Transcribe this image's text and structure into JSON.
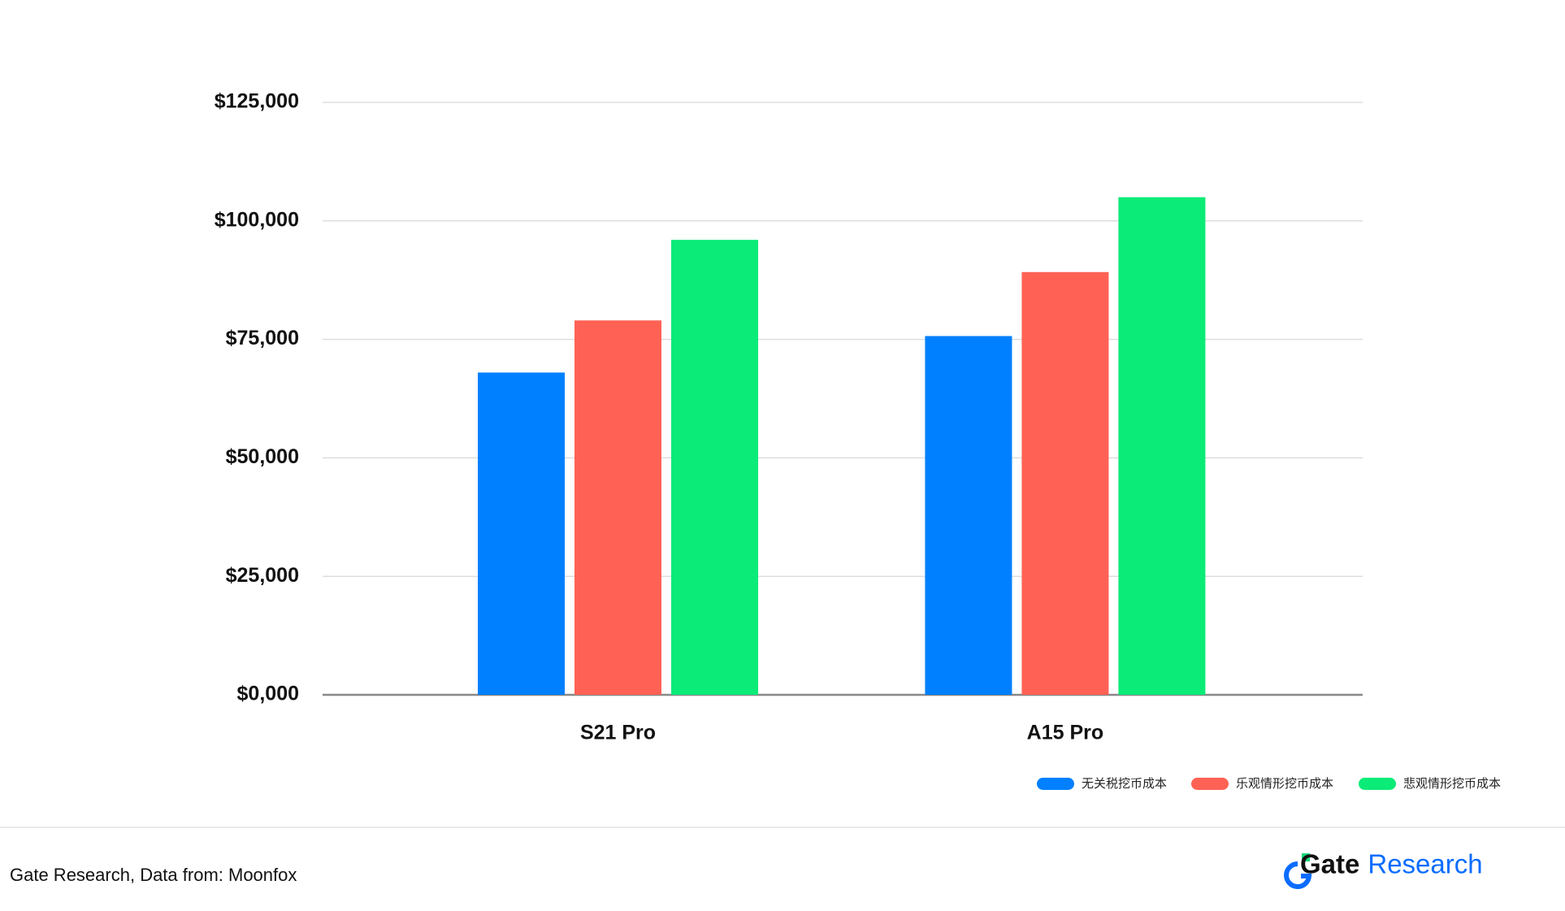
{
  "chart_data": {
    "type": "bar",
    "categories": [
      "S21 Pro",
      "A15 Pro"
    ],
    "series": [
      {
        "name": "无关税挖币成本",
        "color": "#0080ff",
        "values": [
          68000,
          75700
        ]
      },
      {
        "name": "乐观情形挖币成本",
        "color": "#ff6255",
        "values": [
          79000,
          89200
        ]
      },
      {
        "name": "悲观情形挖币成本",
        "color": "#0beb77",
        "values": [
          96000,
          105000
        ]
      }
    ],
    "ylim": [
      0,
      125000
    ],
    "yticks": [
      {
        "value": 0,
        "label": "$0,000"
      },
      {
        "value": 25000,
        "label": "$25,000"
      },
      {
        "value": 50000,
        "label": "$50,000"
      },
      {
        "value": 75000,
        "label": "$75,000"
      },
      {
        "value": 100000,
        "label": "$100,000"
      },
      {
        "value": 125000,
        "label": "$125,000"
      }
    ],
    "grid": true,
    "legend": "bottom-right"
  },
  "footer": {
    "source": "Gate Research, Data from: Moonfox",
    "brand": "Gate",
    "brand_suffix": "Research"
  }
}
